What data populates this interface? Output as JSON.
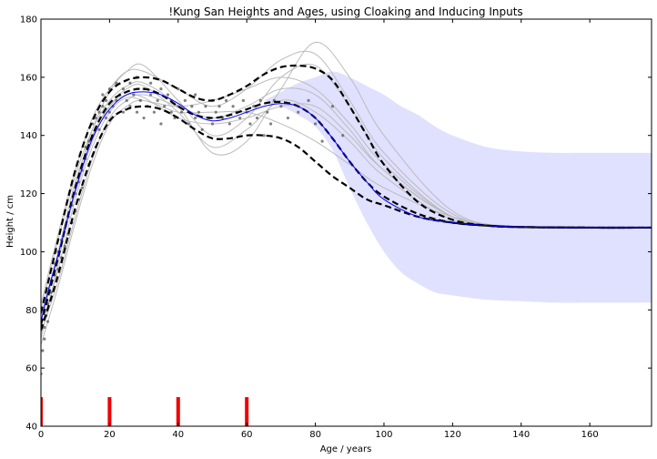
{
  "chart_data": {
    "type": "line",
    "title": "!Kung San Heights and Ages, using Cloaking and Inducing Inputs",
    "xlabel": "Age / years",
    "ylabel": "Height / cm",
    "xlim": [
      0,
      178
    ],
    "ylim": [
      40,
      180
    ],
    "xticks": [
      0,
      20,
      40,
      60,
      80,
      100,
      120,
      140,
      160
    ],
    "yticks": [
      40,
      60,
      80,
      100,
      120,
      140,
      160,
      180
    ],
    "colors": {
      "mean": "#0000ff",
      "band": "#e0e0ff",
      "samples": "#bbbbbb",
      "dashed": "#000000",
      "points": "#555555",
      "inducing": "#ee0000"
    },
    "mean": {
      "x": [
        0,
        2,
        5,
        10,
        15,
        20,
        25,
        30,
        35,
        40,
        45,
        50,
        55,
        60,
        65,
        70,
        75,
        80,
        85,
        90,
        95,
        100,
        110,
        120,
        130,
        140,
        150,
        160,
        178
      ],
      "y": [
        76,
        86,
        99,
        121,
        139,
        149,
        154,
        155,
        154,
        151,
        147,
        145,
        146,
        148,
        150,
        151,
        150,
        146,
        139,
        131,
        124,
        118,
        112,
        110,
        109,
        108.5,
        108.3,
        108.3,
        108.3
      ]
    },
    "band": {
      "x": [
        65,
        70,
        75,
        80,
        85,
        90,
        95,
        100,
        105,
        110,
        115,
        120,
        130,
        140,
        150,
        160,
        178
      ],
      "lower": [
        152,
        150,
        147,
        143,
        135,
        122,
        110,
        100,
        93,
        89,
        86,
        85,
        83.5,
        83,
        82.5,
        82.5,
        82.5
      ],
      "upper": [
        152,
        155,
        158,
        160,
        162,
        160,
        157,
        154,
        150,
        147,
        143,
        140,
        136,
        134.5,
        134,
        134,
        134
      ]
    },
    "dashed_curves": [
      {
        "x": [
          0,
          5,
          10,
          15,
          20,
          25,
          30,
          35,
          40,
          45,
          50,
          55,
          60,
          65,
          70,
          75,
          80,
          85,
          90,
          95,
          100,
          110,
          120,
          130,
          140,
          160,
          178
        ],
        "y": [
          79,
          104,
          128,
          145,
          155,
          159,
          160,
          159,
          156,
          153,
          152,
          154,
          157,
          161,
          163.5,
          164,
          163,
          159,
          150,
          140,
          130,
          117,
          111,
          109,
          108.5,
          108.3,
          108.3
        ]
      },
      {
        "x": [
          0,
          5,
          10,
          15,
          20,
          25,
          30,
          35,
          40,
          45,
          50,
          55,
          60,
          65,
          70,
          75,
          80,
          85,
          90,
          95,
          100,
          110,
          120,
          130,
          140,
          160,
          178
        ],
        "y": [
          73,
          92,
          115,
          133,
          145,
          149,
          150,
          149,
          146,
          142,
          139,
          139,
          140,
          140,
          139,
          136,
          131,
          126,
          122,
          118,
          116,
          112,
          110,
          109,
          108.5,
          108.3,
          108.3
        ]
      },
      {
        "x": [
          0,
          5,
          10,
          15,
          20,
          25,
          30,
          35,
          40,
          45,
          50,
          55,
          60,
          65,
          70,
          75,
          80,
          85,
          90,
          95,
          100,
          110,
          120,
          130,
          140,
          160,
          178
        ],
        "y": [
          75,
          98,
          122,
          140,
          151,
          155,
          156,
          154,
          150,
          147,
          146,
          147,
          149,
          151,
          151.5,
          150,
          146,
          139,
          131,
          124,
          119,
          113,
          110,
          109,
          108.5,
          108.3,
          108.3
        ]
      }
    ],
    "sample_curves": [
      {
        "x": [
          0,
          5,
          10,
          15,
          20,
          25,
          30,
          40,
          50,
          60,
          70,
          80,
          90,
          100,
          120,
          140,
          178
        ],
        "y": [
          70,
          96,
          122,
          142,
          155,
          162,
          164,
          152,
          140,
          146,
          160,
          164,
          150,
          132,
          112,
          108.5,
          108.3
        ]
      },
      {
        "x": [
          0,
          5,
          10,
          15,
          20,
          25,
          30,
          40,
          50,
          60,
          70,
          80,
          90,
          100,
          120,
          140,
          178
        ],
        "y": [
          80,
          104,
          126,
          142,
          152,
          157,
          158,
          150,
          134,
          138,
          156,
          172,
          160,
          140,
          114,
          108.5,
          108.3
        ]
      },
      {
        "x": [
          0,
          5,
          10,
          15,
          20,
          25,
          30,
          40,
          50,
          60,
          70,
          80,
          90,
          100,
          120,
          140,
          178
        ],
        "y": [
          72,
          90,
          112,
          132,
          146,
          152,
          154,
          150,
          146,
          150,
          156,
          154,
          142,
          128,
          112,
          108.5,
          108.3
        ]
      },
      {
        "x": [
          0,
          5,
          10,
          15,
          20,
          25,
          30,
          40,
          50,
          60,
          70,
          80,
          90,
          100,
          120,
          140,
          178
        ],
        "y": [
          78,
          100,
          124,
          140,
          150,
          154,
          153,
          146,
          144,
          146,
          150,
          150,
          140,
          128,
          112,
          108.5,
          108.3
        ]
      },
      {
        "x": [
          0,
          5,
          10,
          15,
          20,
          25,
          30,
          40,
          50,
          60,
          70,
          80,
          90,
          100,
          120,
          140,
          178
        ],
        "y": [
          68,
          88,
          110,
          130,
          144,
          150,
          152,
          148,
          148,
          148,
          144,
          138,
          130,
          122,
          112,
          108.5,
          108.3
        ]
      },
      {
        "x": [
          0,
          5,
          10,
          15,
          20,
          25,
          30,
          40,
          50,
          60,
          70,
          80,
          90,
          100,
          120,
          140,
          178
        ],
        "y": [
          82,
          106,
          128,
          146,
          156,
          162,
          162,
          156,
          150,
          156,
          166,
          168,
          152,
          134,
          113,
          108.5,
          108.3
        ]
      },
      {
        "x": [
          0,
          5,
          10,
          15,
          20,
          25,
          30,
          40,
          50,
          60,
          70,
          80,
          90,
          100,
          120,
          140,
          178
        ],
        "y": [
          74,
          94,
          118,
          136,
          148,
          153,
          152,
          150,
          152,
          156,
          160,
          156,
          144,
          130,
          112,
          108.5,
          108.3
        ]
      },
      {
        "x": [
          0,
          5,
          10,
          15,
          20,
          25,
          30,
          40,
          50,
          60,
          70,
          80,
          90,
          100,
          120,
          140,
          178
        ],
        "y": [
          76,
          98,
          120,
          138,
          150,
          156,
          157,
          148,
          136,
          142,
          152,
          148,
          138,
          126,
          111,
          108.5,
          108.3
        ]
      }
    ],
    "scatter": {
      "x": [
        0,
        0.5,
        1,
        1,
        1.5,
        2,
        2,
        3,
        3,
        4,
        4,
        5,
        5,
        6,
        6,
        7,
        7,
        8,
        8,
        9,
        9,
        10,
        10,
        11,
        11,
        12,
        12,
        13,
        13,
        14,
        14,
        15,
        15,
        16,
        16,
        17,
        17,
        18,
        18,
        19,
        19,
        20,
        20,
        21,
        22,
        22,
        23,
        24,
        24,
        25,
        26,
        26,
        27,
        28,
        28,
        29,
        30,
        30,
        31,
        32,
        32,
        33,
        34,
        35,
        35,
        36,
        37,
        38,
        38,
        39,
        40,
        40,
        41,
        42,
        43,
        44,
        45,
        45,
        46,
        47,
        48,
        49,
        50,
        50,
        51,
        52,
        53,
        54,
        55,
        56,
        57,
        58,
        59,
        60,
        61,
        62,
        63,
        64,
        65,
        66,
        67,
        68,
        70,
        72,
        75,
        78,
        80,
        82,
        85,
        88
      ],
      "y": [
        58,
        66,
        70,
        74,
        78,
        82,
        76,
        86,
        90,
        92,
        96,
        100,
        94,
        104,
        98,
        108,
        102,
        112,
        106,
        116,
        110,
        120,
        114,
        124,
        118,
        128,
        122,
        132,
        136,
        138,
        130,
        140,
        144,
        146,
        136,
        148,
        142,
        150,
        154,
        146,
        152,
        156,
        148,
        150,
        158,
        152,
        154,
        156,
        148,
        152,
        158,
        150,
        154,
        160,
        148,
        152,
        156,
        146,
        150,
        154,
        158,
        148,
        152,
        156,
        144,
        150,
        154,
        148,
        152,
        146,
        150,
        156,
        148,
        152,
        144,
        150,
        146,
        154,
        148,
        142,
        150,
        146,
        152,
        144,
        148,
        150,
        146,
        152,
        144,
        150,
        148,
        146,
        152,
        148,
        144,
        150,
        146,
        152,
        140,
        148,
        144,
        152,
        150,
        146,
        148,
        152,
        144,
        138,
        150,
        140
      ]
    },
    "inducing_inputs": [
      0,
      20,
      40,
      60
    ],
    "inducing_bar_top": 50
  }
}
